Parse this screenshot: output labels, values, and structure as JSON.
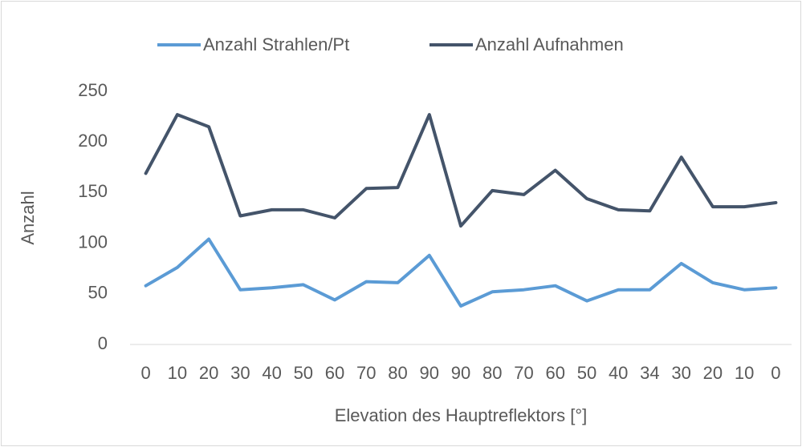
{
  "chart_data": {
    "type": "line",
    "x_label": "Elevation des Hauptreflektors [°]",
    "y_label": "Anzahl",
    "categories": [
      "0",
      "10",
      "20",
      "30",
      "40",
      "50",
      "60",
      "70",
      "80",
      "90",
      "90",
      "80",
      "70",
      "60",
      "50",
      "40",
      "34",
      "30",
      "20",
      "10",
      "0"
    ],
    "series": [
      {
        "name": "Anzahl Strahlen/Pt",
        "color": "#5b9bd5",
        "values": [
          58,
          76,
          104,
          54,
          56,
          59,
          44,
          62,
          61,
          88,
          38,
          52,
          54,
          58,
          43,
          54,
          54,
          80,
          61,
          54,
          56
        ]
      },
      {
        "name": "Anzahl Aufnahmen",
        "color": "#44546a",
        "values": [
          169,
          227,
          215,
          127,
          133,
          133,
          125,
          154,
          155,
          227,
          117,
          152,
          148,
          172,
          144,
          133,
          132,
          185,
          136,
          136,
          140
        ]
      }
    ],
    "ylim": [
      0,
      250
    ],
    "yticks": [
      0,
      50,
      100,
      150,
      200,
      250
    ],
    "grid": false,
    "legend": "top"
  }
}
